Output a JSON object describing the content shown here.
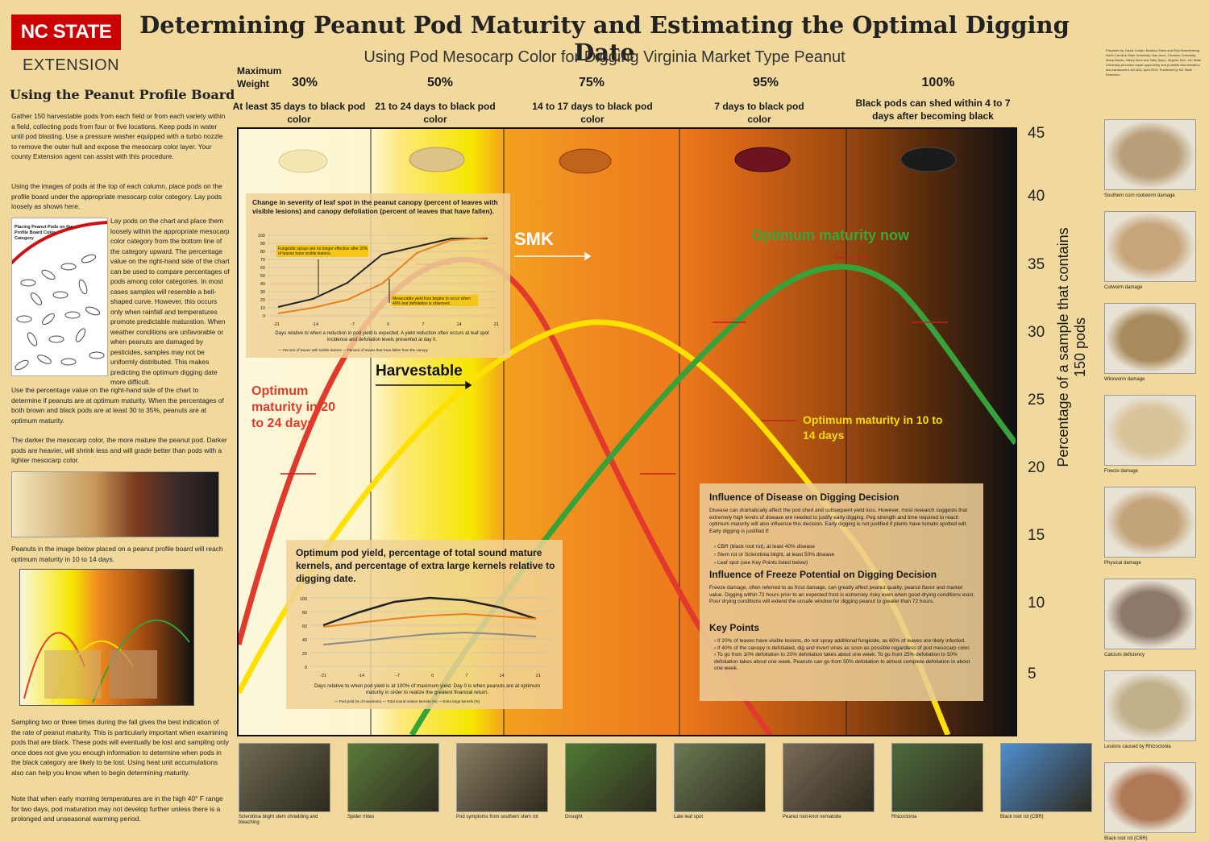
{
  "header": {
    "logo_text": "NC STATE",
    "logo_sub": "EXTENSION",
    "title": "Determining Peanut Pod Maturity and Estimating the Optimal Digging Date",
    "subtitle": "Using Pod Mesocarp Color for Digging Virginia Market Type Peanut",
    "credits": "Prepared by: David Jordan, Barbara Shew and Rick Brandenburg, North Carolina State University; Dan Anco, Clemson University; Maria Balota, Hillary Mehl and Sally Taylor, Virginia Tech. NC State University promotes equal opportunity and prohibits discrimination and harassment. AG-825, April 2019. Published by NC State Extension."
  },
  "left": {
    "heading": "Using the Peanut Profile Board",
    "p1": "Gather 150 harvestable pods from each field or from each variety within a field, collecting pods from four or five locations. Keep pods in water until pod blasting. Use a pressure washer equipped with a turbo nozzle to remove the outer hull and expose the mesocarp color layer. Your county Extension agent can assist with this procedure.",
    "p2": "Using the images of pods at the top of each column, place pods on the profile board under the appropriate mesocarp color category. Lay pods loosely as shown here.",
    "placing_caption": "Placing Peanut Pods on the Profile Board Color Category",
    "p3": "Lay pods on the chart and place them loosely within the appropriate mesocarp color category from the bottom line of the category upward. The percentage value on the right-hand side of the chart can be used to compare percentages of pods among color categories. In most cases samples will resemble a bell-shaped curve. However, this occurs only when rainfall and temperatures promote predictable maturation. When weather conditions are unfavorable or when peanuts are damaged by pesticides, samples may not be uniformly distributed. This makes predicting the optimum digging date more difficult.",
    "p4": "Use the percentage value on the right-hand side of the chart to determine if peanuts are at optimum maturity. When the percentages of both brown and black pods are at least 30 to 35%, peanuts are at optimum maturity.",
    "p5": "The darker the mesocarp color, the more mature the peanut pod. Darker pods are heavier, will shrink less and will grade better than pods with a lighter mesocarp color.",
    "p6": "Peanuts in the image below placed on a peanut profile board will reach optimum maturity in 10 to 14 days.",
    "p7": "Sampling two or three times during the fall gives the best indication of the rate of peanut maturity. This is particularly important when examining pods that are black. These pods will eventually be lost and sampling only once does not give you enough information to determine when pods in the black category are likely to be lost. Using heat unit accumulations also can help you know when to begin determining maturity.",
    "p8": "Note that when early morning temperatures are in the high 40° F range for two days, pod maturation may not develop further unless there is a prolonged and unseasonal warming period."
  },
  "columns": {
    "max_weight_label": "Maximum Weight",
    "items": [
      {
        "pct": "30%",
        "days": "At least 35 days to black pod color",
        "pod_color": "#f3e6b0"
      },
      {
        "pct": "50%",
        "days": "21 to 24 days to black pod color",
        "pod_color": "#dcc38a"
      },
      {
        "pct": "75%",
        "days": "14 to 17 days to black pod color",
        "pod_color": "#c0641c"
      },
      {
        "pct": "95%",
        "days": "7 days to black pod color",
        "pod_color": "#6e1420"
      },
      {
        "pct": "100%",
        "days": "Black pods can shed within 4 to 7 days after becoming black",
        "pod_color": "#1b1b1b"
      }
    ]
  },
  "axis": {
    "label": "Percentage of a sample that contains 150 pods",
    "ticks": [
      "45",
      "40",
      "35",
      "30",
      "25",
      "20",
      "15",
      "10",
      "5"
    ]
  },
  "annotations": {
    "smk": "SMK",
    "harvestable": "Harvestable",
    "opt_now": "Optimum maturity now",
    "opt_20_24": "Optimum maturity in 20 to 24 days",
    "opt_10_14": "Optimum maturity in 10 to 14 days"
  },
  "inset1": {
    "title": "Change in severity of leaf spot in the peanut canopy (percent of leaves with visible lesions) and canopy defoliation (percent of leaves that have fallen).",
    "note_a": "Fungicide sprays are no longer effective after 20% of leaves have visible lesions.",
    "note_b": "Measurable yield loss begins to occur when 40% leaf defoliation is observed.",
    "caption": "Days relative to when a reduction in pod yield is expected. A yield reduction often occurs at leaf spot incidence and defoliation levels presented at day 0.",
    "legend": "— Percent of leaves with visible lesions   — Percent of leaves that have fallen from the canopy",
    "y_ticks": [
      "100",
      "90",
      "80",
      "70",
      "60",
      "50",
      "40",
      "30",
      "20",
      "10",
      "0"
    ],
    "x_ticks": [
      "-21",
      "-14",
      "-7",
      "0",
      "7",
      "14",
      "21"
    ]
  },
  "inset2": {
    "title": "Optimum pod yield, percentage of total sound mature kernels, and percentage of extra large kernels relative to digging date.",
    "caption": "Days relative to when pod yield is at 100% of maximum yield. Day 0 is when peanuts are at optimum maturity in order to realize the greatest financial return.",
    "legend": "— Pod yield (% of maximum)   — Total sound mature kernels (%)   — Extra large kernels (%)",
    "y_ticks": [
      "100",
      "80",
      "60",
      "40",
      "20",
      "0"
    ],
    "x_ticks": [
      "-21",
      "-14",
      "-7",
      "0",
      "7",
      "14",
      "21"
    ]
  },
  "info_box": {
    "h1": "Influence of Disease on Digging Decision",
    "p1": "Disease can dramatically affect the pod shed and subsequent yield loss. However, most research suggests that extremely high levels of disease are needed to justify early digging. Peg strength and time required to reach optimum maturity will also influence this decision. Early digging is not justified if plants have tomato spotted wilt. Early digging is justified if:",
    "b1": "CBR (black root rot), at least 40% disease",
    "b2": "Stem rot or Sclerotinia blight, at least 50% disease",
    "b3": "Leaf spot (see Key Points listed below)",
    "h2": "Influence of Freeze Potential on Digging Decision",
    "p2": "Freeze damage, often referred to as frost damage, can greatly affect peanut quality, peanut flavor and market value. Digging within 72 hours prior to an expected frost is extremely risky even when good drying conditions exist. Poor drying conditions will extend the unsafe window for digging peanut to greater than 72 hours.",
    "h3": "Key Points",
    "k1": "If 20% of leaves have visible lesions, do not spray additional fungicide, as 60% of leaves are likely infected.",
    "k2": "If 40% of the canopy is defoliated, dig and invert vines as soon as possible regardless of pod mesocarp color.",
    "k3": "To go from 10% defoliation to 20% defoliation takes about one week. To go from 25% defoliation to 50% defoliation takes about one week. Peanuts can go from 50% defoliation to almost complete defoliation in about one week."
  },
  "right_photos": [
    {
      "caption": "Southern corn rootworm damage",
      "color": "#b8a07a"
    },
    {
      "caption": "Cutworm damage",
      "color": "#c7a57a"
    },
    {
      "caption": "Wireworm damage",
      "color": "#a88a5c"
    },
    {
      "caption": "Freeze damage",
      "color": "#d9c39a"
    },
    {
      "caption": "Physical damage",
      "color": "#c4a47a"
    },
    {
      "caption": "Calcium deficiency",
      "color": "#8f7a6a"
    },
    {
      "caption": "Lesions caused by Rhizoctonia",
      "color": "#c2b08a"
    },
    {
      "caption": "Black root rot (CBR)",
      "color": "#b07a58"
    }
  ],
  "bottom_photos": [
    {
      "caption": "Sclerotinia blight stem shredding and bleaching",
      "color": "#6e6a52"
    },
    {
      "caption": "Spider mites",
      "color": "#5a7a3a"
    },
    {
      "caption": "Pod symptoms from southern stem rot",
      "color": "#8a7e62"
    },
    {
      "caption": "Drought",
      "color": "#4f7a34"
    },
    {
      "caption": "Late leaf spot",
      "color": "#6a7a52"
    },
    {
      "caption": "Peanut root-knot nematode",
      "color": "#7a6a58"
    },
    {
      "caption": "Rhizoctonia",
      "color": "#4c6a3c"
    },
    {
      "caption": "Black root rot (CBR)",
      "color": "#4f8fcf"
    }
  ]
}
